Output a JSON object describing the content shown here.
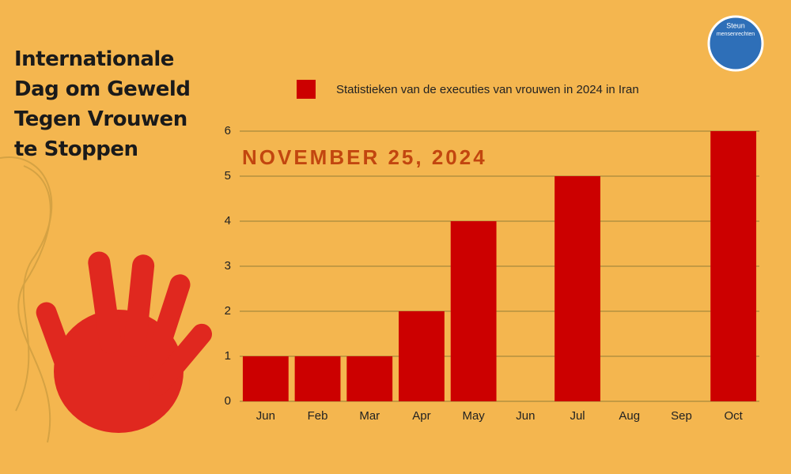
{
  "chart_data": {
    "type": "bar",
    "title": [
      "Internationale",
      "Dag om Geweld",
      "Tegen Vrouwen",
      "te Stoppen"
    ],
    "annotation": "NOVEMBER 25, 2024",
    "logo_text": [
      "Steun",
      "mensenrechten"
    ],
    "categories": [
      "Jun",
      "Feb",
      "Mar",
      "Apr",
      "May",
      "Jun",
      "Jul",
      "Aug",
      "Sep",
      "Oct"
    ],
    "series": [
      {
        "name": "Statistieken van de executies van vrouwen in 2024 in Iran",
        "color": "#cc0000",
        "values": [
          1,
          1,
          1,
          2,
          4,
          0,
          5,
          0,
          0,
          6
        ]
      }
    ],
    "ylim": [
      0,
      6
    ],
    "yticks": [
      0,
      1,
      2,
      3,
      4,
      5,
      6
    ],
    "grid": true
  }
}
